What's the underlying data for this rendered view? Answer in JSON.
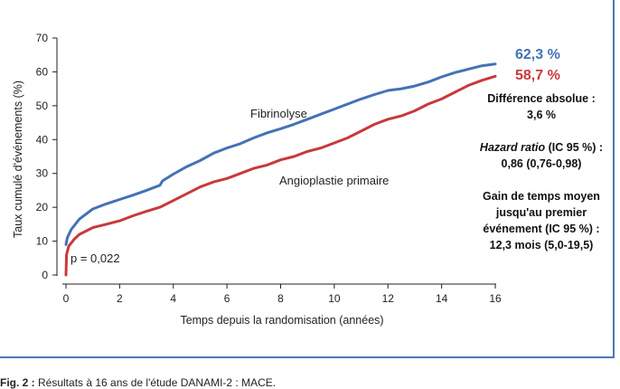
{
  "chart_data": {
    "type": "line",
    "xlabel": "Temps depuis la randomisation (années)",
    "ylabel": "Taux cumulé d'événements (%)",
    "xlim": [
      0,
      16
    ],
    "ylim": [
      0,
      70
    ],
    "xticks": [
      "0",
      "2",
      "4",
      "6",
      "8",
      "10",
      "12",
      "14",
      "16"
    ],
    "yticks": [
      "0",
      "10",
      "20",
      "30",
      "40",
      "50",
      "60",
      "70"
    ],
    "grid": false,
    "series": [
      {
        "name": "Fibrinolyse",
        "color": "#4472b4",
        "end_label": "62,3 %",
        "x": [
          0,
          0.05,
          0.2,
          0.5,
          1,
          1.5,
          2,
          2.5,
          3,
          3.5,
          3.6,
          4,
          4.5,
          5,
          5.5,
          6,
          6.5,
          7,
          7.5,
          8,
          8.5,
          9,
          9.5,
          10,
          10.5,
          11,
          11.5,
          12,
          12.5,
          13,
          13.5,
          14,
          14.5,
          15,
          15.5,
          16
        ],
        "y": [
          9,
          11,
          13.5,
          16.5,
          19.5,
          21,
          22.3,
          23.6,
          25,
          26.5,
          27.8,
          29.8,
          32,
          33.8,
          36,
          37.5,
          38.8,
          40.5,
          42,
          43.2,
          44.5,
          46,
          47.5,
          49,
          50.5,
          52,
          53.3,
          54.5,
          55,
          55.8,
          57,
          58.5,
          59.8,
          60.8,
          61.8,
          62.3
        ]
      },
      {
        "name": "Angioplastie primaire",
        "color": "#c8393c",
        "end_label": "58,7 %",
        "x": [
          0,
          0.02,
          0.1,
          0.3,
          0.5,
          1,
          1.5,
          2,
          2.5,
          3,
          3.5,
          4,
          4.5,
          5,
          5.5,
          6,
          6.5,
          7,
          7.5,
          8,
          8.5,
          9,
          9.5,
          10,
          10.5,
          11,
          11.5,
          12,
          12.5,
          13,
          13.5,
          14,
          14.5,
          15,
          15.5,
          16
        ],
        "y": [
          0,
          6,
          8.5,
          10.5,
          12,
          14,
          15,
          16,
          17.5,
          18.8,
          20,
          22,
          24,
          26,
          27.5,
          28.5,
          30,
          31.5,
          32.5,
          34,
          35,
          36.5,
          37.5,
          39,
          40.5,
          42.5,
          44.5,
          46,
          47,
          48.5,
          50.5,
          52,
          54,
          56,
          57.5,
          58.7
        ]
      }
    ],
    "annotations": [
      "p = 0,022"
    ]
  },
  "stats": {
    "diff_title": "Différence absolue :",
    "diff_value": "3,6 %",
    "hr_title_italic": "Hazard ratio",
    "hr_title_rest": " (IC 95 %) :",
    "hr_value": "0,86 (0,76-0,98)",
    "gain_line1": "Gain de temps moyen",
    "gain_line2": "jusqu'au premier",
    "gain_line3": "événement (IC 95 %) :",
    "gain_value": "12,3 mois (5,0-19,5)"
  },
  "caption": {
    "label": "Fig. 2 :",
    "text": " Résultats à 16 ans de l'étude DANAMI-2 : MACE."
  }
}
